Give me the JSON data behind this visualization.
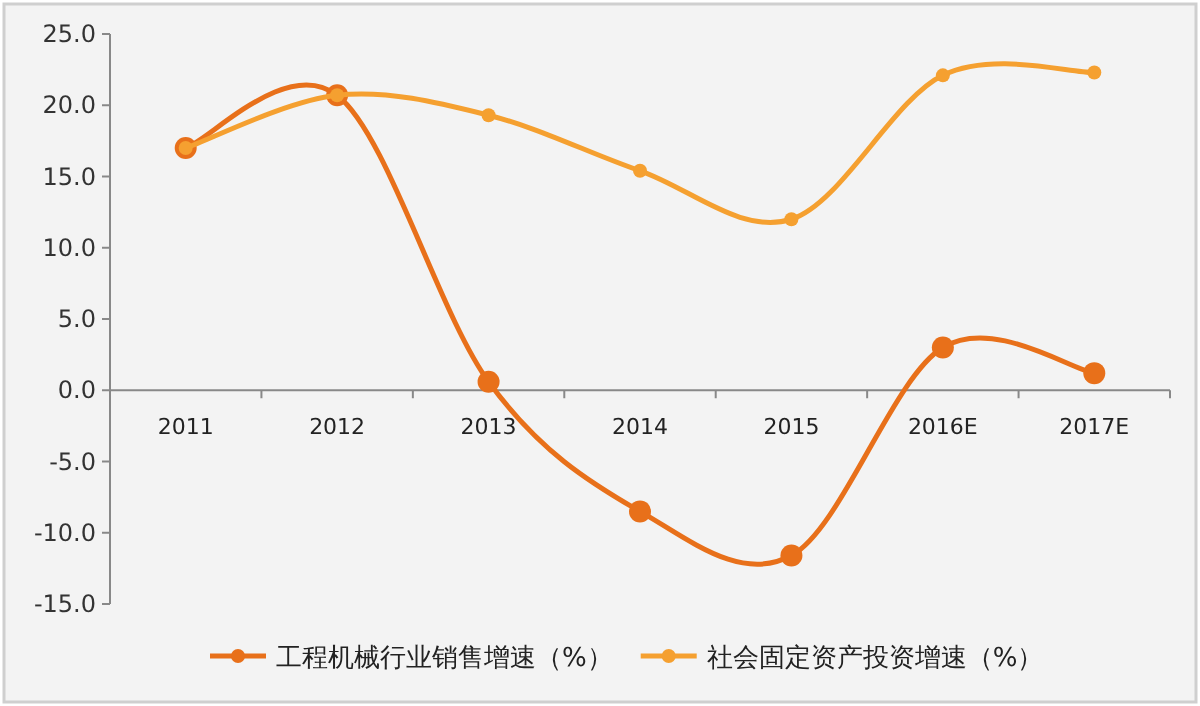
{
  "chart_data": {
    "type": "line",
    "categories": [
      "2011",
      "2012",
      "2013",
      "2014",
      "2015",
      "2016E",
      "2017E"
    ],
    "series": [
      {
        "name": "工程机械行业销售增速（%）",
        "color": "#e8701a",
        "values": [
          17.0,
          20.7,
          0.6,
          -8.5,
          -11.6,
          3.0,
          1.2
        ]
      },
      {
        "name": "社会固定资产投资增速（%）",
        "color": "#f5a030",
        "values": [
          17.0,
          20.7,
          19.3,
          15.4,
          12.0,
          22.1,
          22.3
        ]
      }
    ],
    "ylim": [
      -15,
      25
    ],
    "yticks": [
      {
        "value": -15,
        "label": "-15.0"
      },
      {
        "value": -10,
        "label": "-10.0"
      },
      {
        "value": -5,
        "label": "-5.0"
      },
      {
        "value": 0,
        "label": "0.0"
      },
      {
        "value": 5,
        "label": "5.0"
      },
      {
        "value": 10,
        "label": "10.0"
      },
      {
        "value": 15,
        "label": "15.0"
      },
      {
        "value": 20,
        "label": "20.0"
      },
      {
        "value": 25,
        "label": "25.0"
      }
    ],
    "grid": false,
    "legend": "bottom",
    "marker": "circle",
    "line_style": "solid"
  }
}
